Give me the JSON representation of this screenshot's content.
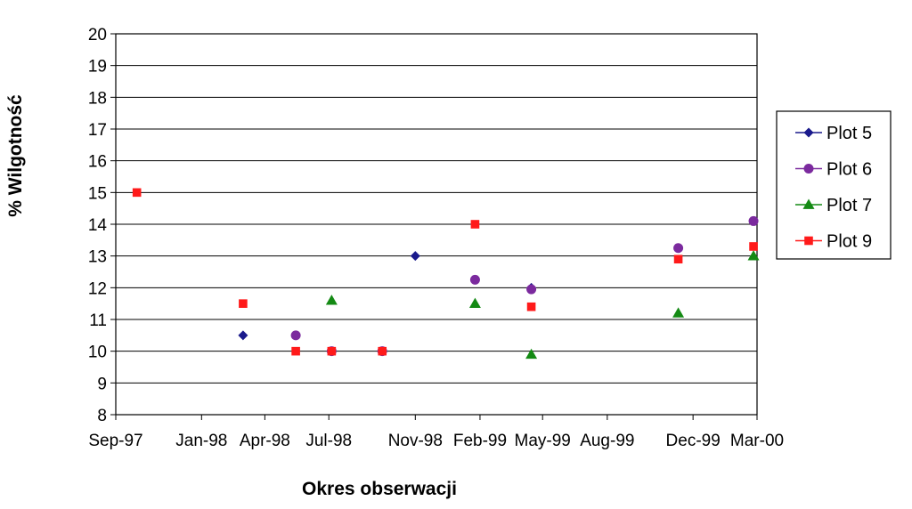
{
  "chart_data": {
    "type": "scatter",
    "xlabel": "Okres obserwacji",
    "ylabel": "% Wilgotność",
    "ylim": [
      8,
      20
    ],
    "yticks": [
      8,
      9,
      10,
      11,
      12,
      13,
      14,
      15,
      16,
      17,
      18,
      19,
      20
    ],
    "xlim": [
      "1997-09-01",
      "2000-03-01"
    ],
    "xticks": [
      {
        "date": "1997-09-01",
        "label": "Sep-97"
      },
      {
        "date": "1998-01-01",
        "label": "Jan-98"
      },
      {
        "date": "1998-04-01",
        "label": "Apr-98"
      },
      {
        "date": "1998-07-01",
        "label": "Jul-98"
      },
      {
        "date": "1998-11-01",
        "label": "Nov-98"
      },
      {
        "date": "1999-02-01",
        "label": "Feb-99"
      },
      {
        "date": "1999-05-01",
        "label": "May-99"
      },
      {
        "date": "1999-08-01",
        "label": "Aug-99"
      },
      {
        "date": "1999-12-01",
        "label": "Dec-99"
      },
      {
        "date": "2000-03-01",
        "label": "Mar-00"
      }
    ],
    "grid": "horizontal",
    "legend_position": "right",
    "series": [
      {
        "name": "Plot 5",
        "marker": "diamond",
        "color": "#1a1a8c",
        "points": [
          {
            "x": "1998-03-01",
            "y": 10.5
          },
          {
            "x": "1998-11-01",
            "y": 13.0
          },
          {
            "x": "1999-04-15",
            "y": 12.0
          }
        ]
      },
      {
        "name": "Plot 6",
        "marker": "circle",
        "color": "#7b2a9e",
        "points": [
          {
            "x": "1998-05-15",
            "y": 10.5
          },
          {
            "x": "1998-07-05",
            "y": 10.0
          },
          {
            "x": "1998-09-15",
            "y": 10.0
          },
          {
            "x": "1999-01-25",
            "y": 12.25
          },
          {
            "x": "1999-04-15",
            "y": 11.95
          },
          {
            "x": "1999-11-10",
            "y": 13.25
          },
          {
            "x": "2000-02-25",
            "y": 14.1
          }
        ]
      },
      {
        "name": "Plot 7",
        "marker": "triangle",
        "color": "#148a14",
        "points": [
          {
            "x": "1998-07-05",
            "y": 11.6
          },
          {
            "x": "1999-01-25",
            "y": 11.5
          },
          {
            "x": "1999-04-15",
            "y": 9.9
          },
          {
            "x": "1999-11-10",
            "y": 11.2
          },
          {
            "x": "2000-02-25",
            "y": 13.0
          }
        ]
      },
      {
        "name": "Plot 9",
        "marker": "square",
        "color": "#ff1a1a",
        "points": [
          {
            "x": "1997-10-01",
            "y": 15.0
          },
          {
            "x": "1998-03-01",
            "y": 11.5
          },
          {
            "x": "1998-05-15",
            "y": 10.0
          },
          {
            "x": "1998-07-05",
            "y": 10.0
          },
          {
            "x": "1998-09-15",
            "y": 10.0
          },
          {
            "x": "1999-01-25",
            "y": 14.0
          },
          {
            "x": "1999-04-15",
            "y": 11.4
          },
          {
            "x": "1999-11-10",
            "y": 12.9
          },
          {
            "x": "2000-02-25",
            "y": 13.3
          }
        ]
      }
    ]
  }
}
